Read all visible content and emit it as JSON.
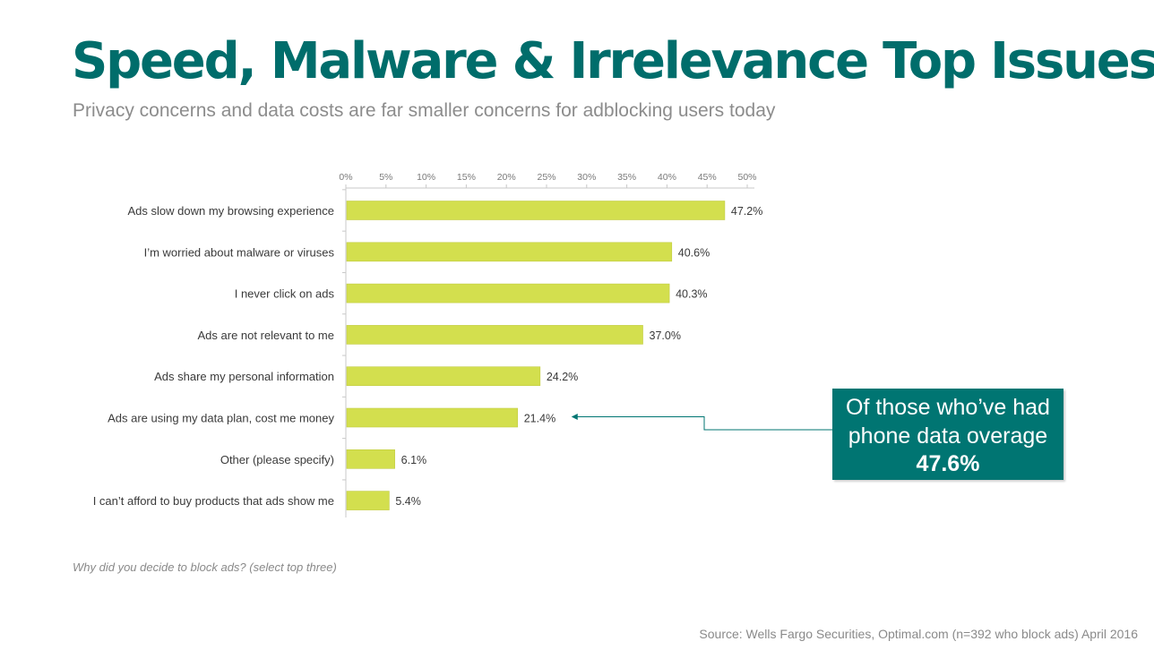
{
  "slide": {
    "title": "Speed, Malware & Irrelevance Top Issues",
    "subtitle": "Privacy concerns and data costs are far smaller concerns for adblocking users today",
    "question": "Why did you decide to block ads? (select top three)",
    "source": "Source: Wells Fargo Securities, Optimal.com (n=392 who block ads) April 2016"
  },
  "callout": {
    "line1": "Of those who’ve had",
    "line2": "phone data overage",
    "value": "47.6%",
    "points_to": "Ads are using my data plan, cost me money",
    "background_color": "#007572"
  },
  "chart_data": {
    "type": "bar",
    "orientation": "horizontal",
    "categories": [
      "Ads slow down my browsing experience",
      "I’m worried about malware or viruses",
      "I never click on ads",
      "Ads are not relevant to me",
      "Ads share my personal information",
      "Ads are using my data plan, cost me money",
      "Other (please specify)",
      "I can’t afford to buy products that ads show me"
    ],
    "values": [
      47.2,
      40.6,
      40.3,
      37.0,
      24.2,
      21.4,
      6.1,
      5.4
    ],
    "value_labels": [
      "47.2%",
      "40.6%",
      "40.3%",
      "37.0%",
      "24.2%",
      "21.4%",
      "6.1%",
      "5.4%"
    ],
    "x_ticks": [
      0,
      5,
      10,
      15,
      20,
      25,
      30,
      35,
      40,
      45,
      50
    ],
    "x_tick_labels": [
      "0%",
      "5%",
      "10%",
      "15%",
      "20%",
      "25%",
      "30%",
      "35%",
      "40%",
      "45%",
      "50%"
    ],
    "xlim": [
      0,
      50
    ],
    "axis_position": "top",
    "grid": false,
    "bar_color": "#d3df4e",
    "title": "",
    "xlabel": "",
    "ylabel": ""
  }
}
